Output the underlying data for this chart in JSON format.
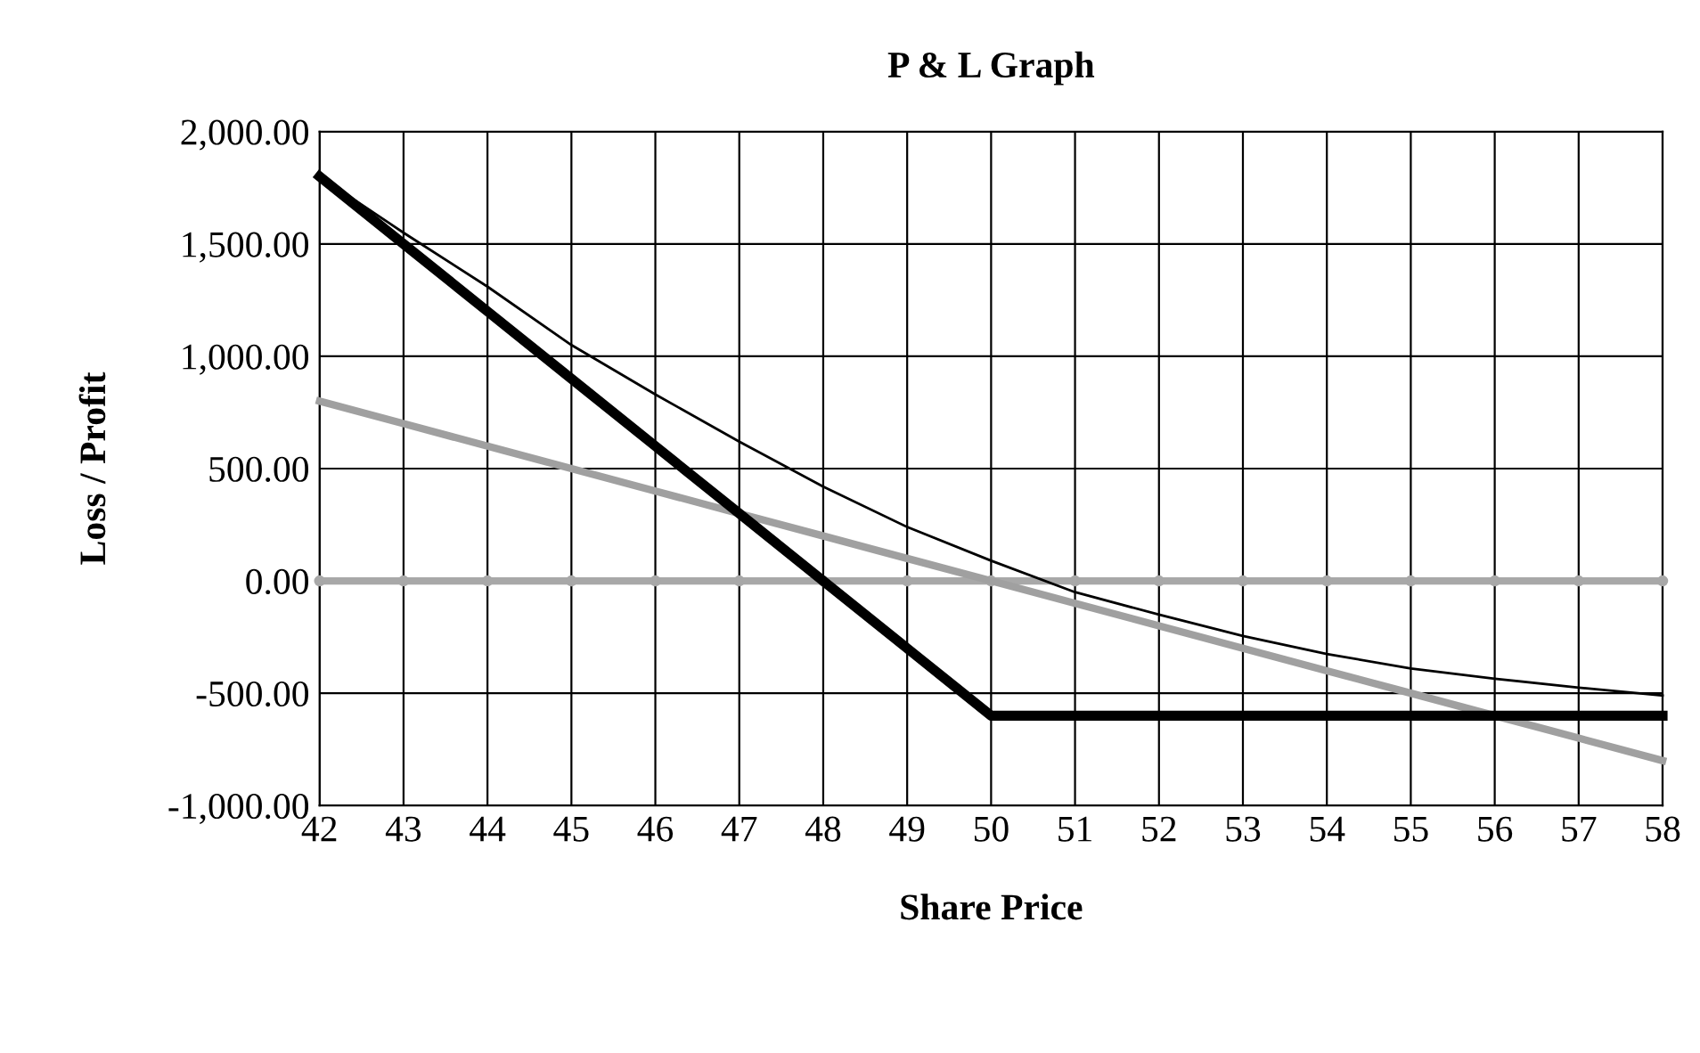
{
  "chart_data": {
    "type": "line",
    "title": "P & L Graph",
    "xlabel": "Share Price",
    "ylabel": "Loss / Profit",
    "x": [
      42,
      43,
      44,
      45,
      46,
      47,
      48,
      49,
      50,
      51,
      52,
      53,
      54,
      55,
      56,
      57,
      58
    ],
    "xlim": [
      42,
      58
    ],
    "xticks": [
      42,
      43,
      44,
      45,
      46,
      47,
      48,
      49,
      50,
      51,
      52,
      53,
      54,
      55,
      56,
      57,
      58
    ],
    "ylim": [
      -1000,
      2000
    ],
    "yticks": [
      {
        "value": -1000,
        "label": "-1,000.00"
      },
      {
        "value": -500,
        "label": "-500.00"
      },
      {
        "value": 0,
        "label": "0.00"
      },
      {
        "value": 500,
        "label": "500.00"
      },
      {
        "value": 1000,
        "label": "1,000.00"
      },
      {
        "value": 1500,
        "label": "1,500.00"
      },
      {
        "value": 2000,
        "label": "2,000.00"
      }
    ],
    "grid": true,
    "legend": false,
    "series": [
      {
        "color": "#a8a8a8",
        "marker": "circle",
        "values": [
          0,
          0,
          0,
          0,
          0,
          0,
          0,
          0,
          0,
          0,
          0,
          0,
          0,
          0,
          0,
          0,
          0
        ]
      },
      {
        "color": "#a0a0a0",
        "values": [
          800,
          700,
          600,
          500,
          400,
          300,
          200,
          100,
          0,
          -100,
          -200,
          -300,
          -400,
          -500,
          -600,
          -700,
          -800
        ]
      },
      {
        "color": "#000000",
        "values": [
          1800,
          1550,
          1310,
          1050,
          830,
          620,
          420,
          240,
          90,
          -50,
          -150,
          -245,
          -325,
          -390,
          -435,
          -475,
          -510
        ]
      },
      {
        "color": "#000000",
        "values": [
          1800,
          1500,
          1200,
          900,
          600,
          300,
          0,
          -300,
          -600,
          -600,
          -600,
          -600,
          -600,
          -600,
          -600,
          -600,
          -600
        ]
      }
    ]
  }
}
